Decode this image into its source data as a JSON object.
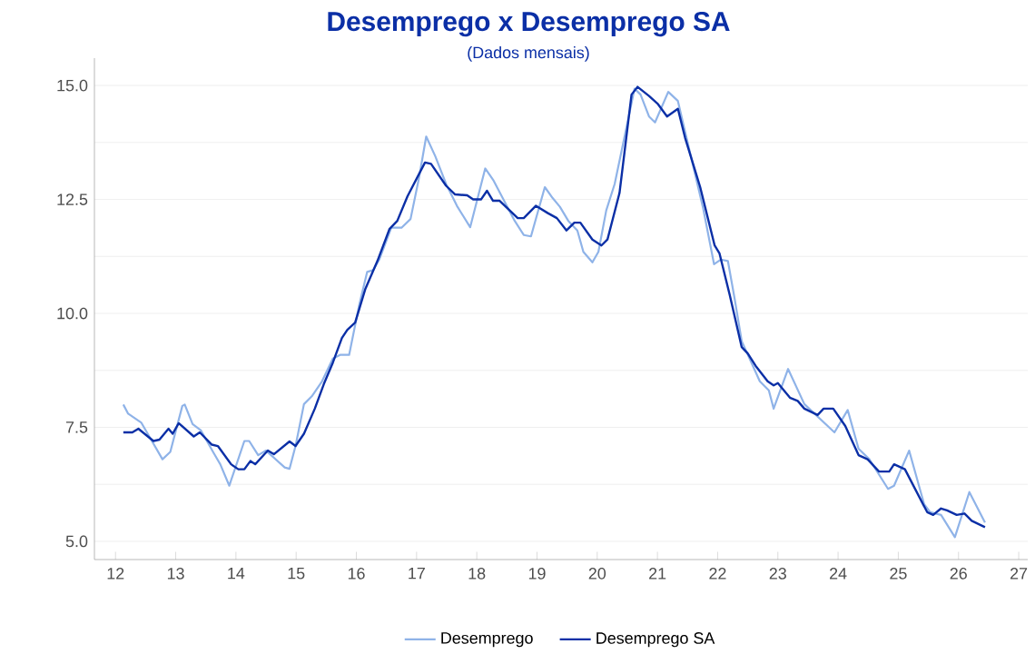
{
  "chart_data": {
    "type": "line",
    "title": "Desemprego x Desemprego SA",
    "subtitle": "(Dados mensais)",
    "xlim": [
      11.65,
      27.15
    ],
    "ylim": [
      4.6,
      15.6
    ],
    "xticks": [
      12,
      13,
      14,
      15,
      16,
      17,
      18,
      19,
      20,
      21,
      22,
      23,
      24,
      25,
      26,
      27
    ],
    "yticks": [
      {
        "value": 5,
        "label": "5.0"
      },
      {
        "value": 6.25,
        "label": null
      },
      {
        "value": 7.5,
        "label": "7.5"
      },
      {
        "value": 8.75,
        "label": null
      },
      {
        "value": 10,
        "label": "10.0"
      },
      {
        "value": 11.25,
        "label": null
      },
      {
        "value": 12.5,
        "label": "12.5"
      },
      {
        "value": 13.75,
        "label": null
      },
      {
        "value": 15,
        "label": "15.0"
      }
    ],
    "grid": "y",
    "legend": "bottom",
    "marker": "none",
    "line_style": "solid",
    "series": [
      {
        "name": "Desemprego",
        "color": "#8fb3e8",
        "x": [
          12.13,
          12.21,
          12.43,
          12.78,
          12.91,
          13.11,
          13.15,
          13.28,
          13.42,
          13.62,
          13.74,
          13.89,
          14.14,
          14.22,
          14.37,
          14.5,
          14.81,
          14.89,
          14.99,
          15.13,
          15.26,
          15.43,
          15.61,
          15.73,
          15.88,
          16.05,
          16.18,
          16.28,
          16.38,
          16.58,
          16.75,
          16.9,
          17.04,
          17.16,
          17.31,
          17.49,
          17.67,
          17.89,
          18.14,
          18.28,
          18.63,
          18.78,
          18.9,
          19.13,
          19.26,
          19.38,
          19.52,
          19.67,
          19.77,
          19.92,
          20.02,
          20.15,
          20.29,
          20.45,
          20.62,
          20.72,
          20.86,
          20.96,
          21.18,
          21.34,
          21.58,
          21.76,
          21.94,
          22.05,
          22.17,
          22.28,
          22.4,
          22.7,
          22.85,
          22.93,
          23.17,
          23.44,
          23.94,
          24.16,
          24.34,
          24.52,
          24.83,
          24.93,
          25.18,
          25.43,
          25.53,
          25.71,
          25.94,
          26.18,
          26.44
        ],
        "values": [
          8.0,
          7.8,
          7.6,
          6.8,
          6.96,
          7.97,
          8.0,
          7.57,
          7.43,
          6.96,
          6.69,
          6.22,
          7.2,
          7.2,
          6.89,
          6.99,
          6.62,
          6.59,
          7.09,
          8.01,
          8.18,
          8.51,
          9.01,
          9.09,
          9.09,
          10.2,
          10.91,
          10.95,
          11.18,
          11.88,
          11.88,
          12.07,
          12.97,
          13.88,
          13.45,
          12.84,
          12.36,
          11.89,
          13.18,
          12.91,
          12.03,
          11.72,
          11.69,
          12.77,
          12.53,
          12.34,
          12.03,
          11.82,
          11.35,
          11.12,
          11.35,
          12.26,
          12.84,
          13.85,
          14.93,
          14.8,
          14.32,
          14.19,
          14.86,
          14.66,
          13.31,
          12.3,
          11.08,
          11.18,
          11.15,
          10.34,
          9.39,
          8.51,
          8.31,
          7.91,
          8.78,
          8.01,
          7.39,
          7.88,
          7.03,
          6.8,
          6.15,
          6.22,
          6.99,
          5.81,
          5.64,
          5.58,
          5.09,
          6.08,
          5.41
        ]
      },
      {
        "name": "Desemprego SA",
        "color": "#0b2fa6",
        "x": [
          12.13,
          12.28,
          12.38,
          12.63,
          12.73,
          12.88,
          12.95,
          13.05,
          13.3,
          13.4,
          13.6,
          13.7,
          13.92,
          14.04,
          14.14,
          14.24,
          14.32,
          14.53,
          14.63,
          14.89,
          14.99,
          15.13,
          15.31,
          15.46,
          15.61,
          15.76,
          15.85,
          15.98,
          16.15,
          16.35,
          16.55,
          16.68,
          16.85,
          17.14,
          17.24,
          17.49,
          17.64,
          17.84,
          17.94,
          18.07,
          18.17,
          18.27,
          18.38,
          18.68,
          18.78,
          18.98,
          19.18,
          19.33,
          19.49,
          19.62,
          19.72,
          19.92,
          20.07,
          20.17,
          20.37,
          20.57,
          20.67,
          20.86,
          21.01,
          21.16,
          21.34,
          21.46,
          21.71,
          21.95,
          22.03,
          22.2,
          22.4,
          22.5,
          22.63,
          22.83,
          22.93,
          23.0,
          23.2,
          23.33,
          23.44,
          23.66,
          23.76,
          23.92,
          24.12,
          24.34,
          24.49,
          24.68,
          24.85,
          24.93,
          25.11,
          25.48,
          25.58,
          25.71,
          25.81,
          25.97,
          26.1,
          26.22,
          26.44
        ],
        "values": [
          7.39,
          7.39,
          7.47,
          7.2,
          7.23,
          7.47,
          7.36,
          7.59,
          7.3,
          7.39,
          7.12,
          7.09,
          6.69,
          6.58,
          6.58,
          6.76,
          6.69,
          6.99,
          6.91,
          7.19,
          7.09,
          7.36,
          7.91,
          8.45,
          8.92,
          9.46,
          9.64,
          9.8,
          10.54,
          11.15,
          11.85,
          12.03,
          12.57,
          13.31,
          13.28,
          12.8,
          12.61,
          12.59,
          12.5,
          12.5,
          12.69,
          12.47,
          12.47,
          12.09,
          12.09,
          12.36,
          12.2,
          12.09,
          11.82,
          11.99,
          11.99,
          11.62,
          11.49,
          11.62,
          12.64,
          14.8,
          14.97,
          14.77,
          14.59,
          14.32,
          14.49,
          13.85,
          12.77,
          11.49,
          11.32,
          10.41,
          9.26,
          9.12,
          8.85,
          8.51,
          8.42,
          8.47,
          8.15,
          8.08,
          7.91,
          7.77,
          7.91,
          7.91,
          7.53,
          6.89,
          6.8,
          6.53,
          6.53,
          6.69,
          6.58,
          5.64,
          5.58,
          5.72,
          5.68,
          5.58,
          5.61,
          5.45,
          5.31
        ]
      }
    ]
  }
}
